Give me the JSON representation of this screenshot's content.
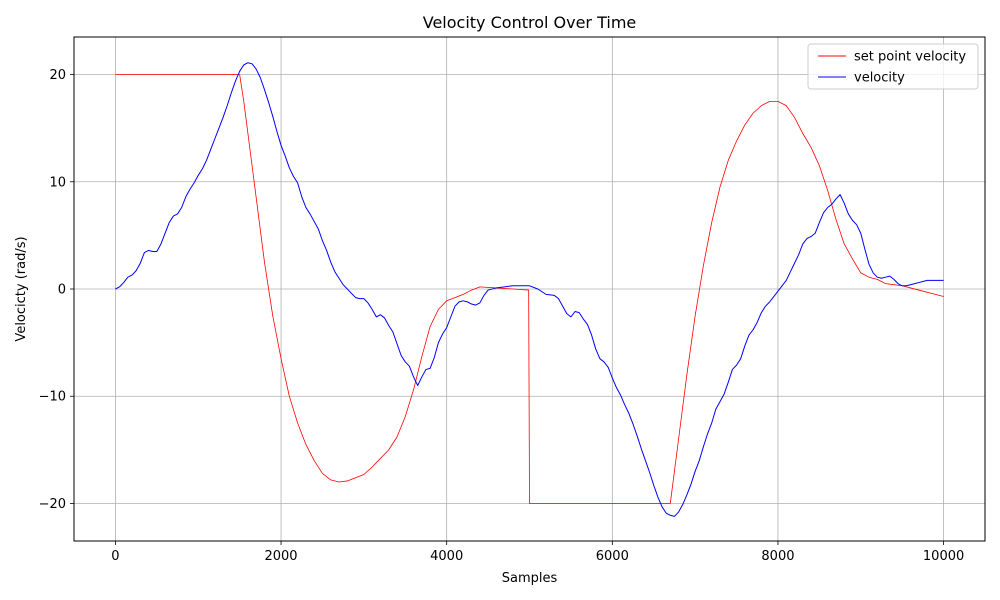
{
  "chart_data": {
    "type": "line",
    "title": "Velocity Control Over Time",
    "xlabel": "Samples",
    "ylabel": "Velocicty (rad/s)",
    "xlim": [
      -500,
      10500
    ],
    "ylim": [
      -23.5,
      23.5
    ],
    "xticks": [
      0,
      2000,
      4000,
      6000,
      8000,
      10000
    ],
    "yticks": [
      -20,
      -10,
      0,
      10,
      20
    ],
    "ytick_labels": [
      "−20",
      "−10",
      "0",
      "10",
      "20"
    ],
    "grid": true,
    "legend_position": "top-right",
    "series": [
      {
        "name": "set point velocity",
        "color": "#ff0000",
        "points": [
          [
            0,
            20
          ],
          [
            1500,
            20
          ],
          [
            1550,
            17.5
          ],
          [
            1600,
            14.5
          ],
          [
            1700,
            8.5
          ],
          [
            1800,
            2.5
          ],
          [
            1900,
            -2.5
          ],
          [
            2000,
            -6.5
          ],
          [
            2100,
            -10
          ],
          [
            2200,
            -12.5
          ],
          [
            2300,
            -14.5
          ],
          [
            2400,
            -16
          ],
          [
            2500,
            -17.2
          ],
          [
            2600,
            -17.8
          ],
          [
            2700,
            -18
          ],
          [
            2800,
            -17.9
          ],
          [
            2900,
            -17.6
          ],
          [
            3000,
            -17.3
          ],
          [
            3100,
            -16.6
          ],
          [
            3200,
            -15.8
          ],
          [
            3300,
            -15
          ],
          [
            3400,
            -13.8
          ],
          [
            3500,
            -11.9
          ],
          [
            3600,
            -9.4
          ],
          [
            3700,
            -6.3
          ],
          [
            3800,
            -3.5
          ],
          [
            3900,
            -1.9
          ],
          [
            4000,
            -1.1
          ],
          [
            4100,
            -0.8
          ],
          [
            4200,
            -0.5
          ],
          [
            4300,
            -0.1
          ],
          [
            4400,
            0.2
          ],
          [
            4600,
            0.1
          ],
          [
            4800,
            0
          ],
          [
            4990,
            -0.1
          ],
          [
            5000,
            -20
          ],
          [
            6700,
            -20
          ],
          [
            6800,
            -14
          ],
          [
            6900,
            -8
          ],
          [
            7000,
            -2.5
          ],
          [
            7100,
            2.2
          ],
          [
            7200,
            6.2
          ],
          [
            7300,
            9.5
          ],
          [
            7400,
            12
          ],
          [
            7500,
            13.8
          ],
          [
            7600,
            15.3
          ],
          [
            7700,
            16.4
          ],
          [
            7800,
            17.1
          ],
          [
            7900,
            17.5
          ],
          [
            8000,
            17.5
          ],
          [
            8100,
            17.1
          ],
          [
            8200,
            16
          ],
          [
            8300,
            14.5
          ],
          [
            8400,
            13.2
          ],
          [
            8500,
            11.5
          ],
          [
            8600,
            9.2
          ],
          [
            8700,
            6.5
          ],
          [
            8800,
            4.2
          ],
          [
            8900,
            2.8
          ],
          [
            9000,
            1.5
          ],
          [
            9100,
            1.1
          ],
          [
            9200,
            0.9
          ],
          [
            9300,
            0.5
          ],
          [
            9500,
            0.3
          ],
          [
            9700,
            -0.1
          ],
          [
            9900,
            -0.5
          ],
          [
            10000,
            -0.7
          ]
        ]
      },
      {
        "name": "velocity",
        "color": "#0000ff",
        "points": [
          [
            0,
            0
          ],
          [
            50,
            0.2
          ],
          [
            100,
            0.6
          ],
          [
            150,
            1.1
          ],
          [
            200,
            1.3
          ],
          [
            250,
            1.7
          ],
          [
            300,
            2.4
          ],
          [
            350,
            3.4
          ],
          [
            400,
            3.6
          ],
          [
            450,
            3.5
          ],
          [
            500,
            3.5
          ],
          [
            550,
            4.2
          ],
          [
            600,
            5.2
          ],
          [
            650,
            6.2
          ],
          [
            700,
            6.8
          ],
          [
            750,
            7
          ],
          [
            800,
            7.6
          ],
          [
            850,
            8.6
          ],
          [
            900,
            9.3
          ],
          [
            950,
            9.9
          ],
          [
            1000,
            10.6
          ],
          [
            1050,
            11.2
          ],
          [
            1100,
            12
          ],
          [
            1150,
            13
          ],
          [
            1200,
            14
          ],
          [
            1250,
            15
          ],
          [
            1300,
            16
          ],
          [
            1350,
            17.1
          ],
          [
            1400,
            18.3
          ],
          [
            1450,
            19.4
          ],
          [
            1500,
            20.3
          ],
          [
            1550,
            20.9
          ],
          [
            1600,
            21.1
          ],
          [
            1650,
            21
          ],
          [
            1700,
            20.5
          ],
          [
            1750,
            19.7
          ],
          [
            1800,
            18.6
          ],
          [
            1850,
            17.4
          ],
          [
            1900,
            16.1
          ],
          [
            1950,
            14.7
          ],
          [
            2000,
            13.4
          ],
          [
            2050,
            12.4
          ],
          [
            2100,
            11.3
          ],
          [
            2150,
            10.5
          ],
          [
            2200,
            9.9
          ],
          [
            2250,
            8.6
          ],
          [
            2300,
            7.6
          ],
          [
            2350,
            7
          ],
          [
            2400,
            6.3
          ],
          [
            2450,
            5.6
          ],
          [
            2500,
            4.5
          ],
          [
            2550,
            3.6
          ],
          [
            2600,
            2.5
          ],
          [
            2650,
            1.6
          ],
          [
            2700,
            1
          ],
          [
            2750,
            0.4
          ],
          [
            2800,
            0
          ],
          [
            2850,
            -0.4
          ],
          [
            2900,
            -0.8
          ],
          [
            2950,
            -0.9
          ],
          [
            3000,
            -0.9
          ],
          [
            3050,
            -1.3
          ],
          [
            3100,
            -1.9
          ],
          [
            3150,
            -2.6
          ],
          [
            3200,
            -2.4
          ],
          [
            3250,
            -2.7
          ],
          [
            3300,
            -3.4
          ],
          [
            3350,
            -4
          ],
          [
            3400,
            -5.1
          ],
          [
            3450,
            -6.2
          ],
          [
            3500,
            -6.8
          ],
          [
            3550,
            -7.2
          ],
          [
            3600,
            -8.2
          ],
          [
            3650,
            -9
          ],
          [
            3700,
            -8.2
          ],
          [
            3750,
            -7.5
          ],
          [
            3800,
            -7.4
          ],
          [
            3850,
            -6.4
          ],
          [
            3900,
            -5
          ],
          [
            3950,
            -4.2
          ],
          [
            4000,
            -3.6
          ],
          [
            4050,
            -2.6
          ],
          [
            4100,
            -1.6
          ],
          [
            4150,
            -1.2
          ],
          [
            4200,
            -1.1
          ],
          [
            4250,
            -1.2
          ],
          [
            4300,
            -1.4
          ],
          [
            4350,
            -1.5
          ],
          [
            4400,
            -1.3
          ],
          [
            4450,
            -0.6
          ],
          [
            4500,
            -0.1
          ],
          [
            4600,
            0.1
          ],
          [
            4700,
            0.2
          ],
          [
            4800,
            0.3
          ],
          [
            4900,
            0.3
          ],
          [
            5000,
            0.3
          ],
          [
            5100,
            0
          ],
          [
            5200,
            -0.5
          ],
          [
            5300,
            -0.6
          ],
          [
            5350,
            -0.9
          ],
          [
            5400,
            -1.6
          ],
          [
            5450,
            -2.3
          ],
          [
            5500,
            -2.6
          ],
          [
            5550,
            -2.1
          ],
          [
            5600,
            -2.2
          ],
          [
            5650,
            -2.8
          ],
          [
            5700,
            -3.3
          ],
          [
            5750,
            -4.3
          ],
          [
            5800,
            -5.6
          ],
          [
            5850,
            -6.5
          ],
          [
            5900,
            -6.8
          ],
          [
            5950,
            -7.3
          ],
          [
            6000,
            -8.3
          ],
          [
            6050,
            -9.2
          ],
          [
            6100,
            -9.9
          ],
          [
            6150,
            -10.8
          ],
          [
            6200,
            -11.6
          ],
          [
            6250,
            -12.6
          ],
          [
            6300,
            -13.7
          ],
          [
            6350,
            -14.9
          ],
          [
            6400,
            -16
          ],
          [
            6450,
            -17.1
          ],
          [
            6500,
            -18.3
          ],
          [
            6550,
            -19.4
          ],
          [
            6600,
            -20.3
          ],
          [
            6650,
            -20.9
          ],
          [
            6700,
            -21.1
          ],
          [
            6750,
            -21.2
          ],
          [
            6800,
            -20.8
          ],
          [
            6850,
            -20.1
          ],
          [
            6900,
            -19.2
          ],
          [
            6950,
            -18.2
          ],
          [
            7000,
            -17
          ],
          [
            7050,
            -16
          ],
          [
            7100,
            -14.7
          ],
          [
            7150,
            -13.5
          ],
          [
            7200,
            -12.5
          ],
          [
            7250,
            -11.2
          ],
          [
            7300,
            -10.5
          ],
          [
            7350,
            -9.8
          ],
          [
            7400,
            -8.7
          ],
          [
            7450,
            -7.5
          ],
          [
            7500,
            -7.1
          ],
          [
            7550,
            -6.5
          ],
          [
            7600,
            -5.3
          ],
          [
            7650,
            -4.3
          ],
          [
            7700,
            -3.8
          ],
          [
            7750,
            -3.1
          ],
          [
            7800,
            -2.2
          ],
          [
            7850,
            -1.6
          ],
          [
            7900,
            -1.2
          ],
          [
            7950,
            -0.7
          ],
          [
            8000,
            -0.2
          ],
          [
            8050,
            0.3
          ],
          [
            8100,
            0.8
          ],
          [
            8150,
            1.6
          ],
          [
            8200,
            2.4
          ],
          [
            8250,
            3.2
          ],
          [
            8300,
            4.2
          ],
          [
            8350,
            4.7
          ],
          [
            8400,
            4.9
          ],
          [
            8450,
            5.2
          ],
          [
            8500,
            6.2
          ],
          [
            8550,
            7.1
          ],
          [
            8600,
            7.6
          ],
          [
            8650,
            7.9
          ],
          [
            8700,
            8.4
          ],
          [
            8750,
            8.8
          ],
          [
            8800,
            8
          ],
          [
            8850,
            7
          ],
          [
            8900,
            6.4
          ],
          [
            8950,
            6
          ],
          [
            9000,
            5.2
          ],
          [
            9050,
            3.7
          ],
          [
            9100,
            2.3
          ],
          [
            9150,
            1.5
          ],
          [
            9200,
            1.1
          ],
          [
            9250,
            1
          ],
          [
            9300,
            1.1
          ],
          [
            9350,
            1.2
          ],
          [
            9400,
            0.9
          ],
          [
            9450,
            0.5
          ],
          [
            9500,
            0.3
          ],
          [
            9550,
            0.3
          ],
          [
            9600,
            0.4
          ],
          [
            9650,
            0.5
          ],
          [
            9700,
            0.6
          ],
          [
            9750,
            0.7
          ],
          [
            9800,
            0.8
          ],
          [
            9900,
            0.8
          ],
          [
            10000,
            0.8
          ]
        ]
      }
    ]
  }
}
